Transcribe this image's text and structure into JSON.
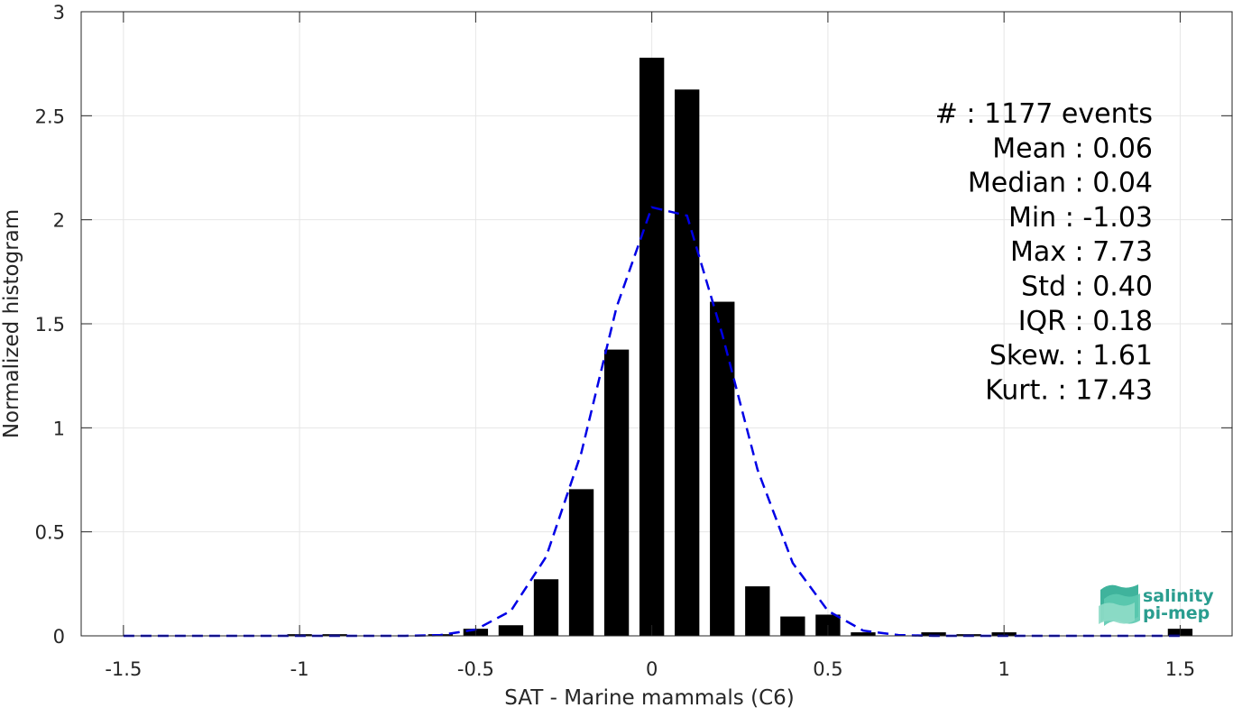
{
  "chart_data": {
    "type": "bar",
    "xlabel": "SAT - Marine mammals (C6)",
    "ylabel": "Normalized histogram",
    "xlim": [
      -1.62,
      1.65
    ],
    "ylim": [
      0,
      3
    ],
    "xticks": [
      -1.5,
      -1,
      -0.5,
      0,
      0.5,
      1,
      1.5
    ],
    "xtick_labels": [
      "-1.5",
      "-1",
      "-0.5",
      "0",
      "0.5",
      "1",
      "1.5"
    ],
    "yticks": [
      0,
      0.5,
      1,
      1.5,
      2,
      2.5,
      3
    ],
    "ytick_labels": [
      "0",
      "0.5",
      "1",
      "1.5",
      "2",
      "2.5",
      "3"
    ],
    "grid": true,
    "bar_width": 0.07,
    "bars": {
      "x": [
        -1.5,
        -1.4,
        -1.3,
        -1.2,
        -1.1,
        -1.0,
        -0.9,
        -0.8,
        -0.7,
        -0.6,
        -0.5,
        -0.4,
        -0.3,
        -0.2,
        -0.1,
        0.0,
        0.1,
        0.2,
        0.3,
        0.4,
        0.5,
        0.6,
        0.7,
        0.8,
        0.9,
        1.0,
        1.1,
        1.2,
        1.3,
        1.4,
        1.5
      ],
      "values": [
        0,
        0,
        0,
        0,
        0,
        0.008,
        0.008,
        0,
        0,
        0.008,
        0.034,
        0.051,
        0.272,
        0.705,
        1.376,
        2.779,
        2.626,
        1.606,
        0.238,
        0.093,
        0.102,
        0.017,
        0,
        0.017,
        0.008,
        0.017,
        0,
        0,
        0,
        0,
        0.034
      ],
      "color": "#000000"
    },
    "fit_line": {
      "x": [
        -1.5,
        -1.4,
        -1.3,
        -1.2,
        -1.1,
        -1.0,
        -0.9,
        -0.8,
        -0.7,
        -0.6,
        -0.5,
        -0.4,
        -0.3,
        -0.2,
        -0.1,
        0.0,
        0.1,
        0.2,
        0.3,
        0.4,
        0.5,
        0.6,
        0.7,
        0.8,
        0.9,
        1.0,
        1.1,
        1.2,
        1.3,
        1.4,
        1.5
      ],
      "values": [
        0,
        0,
        0,
        0,
        0,
        0,
        0,
        0,
        0,
        0.004,
        0.03,
        0.12,
        0.38,
        0.88,
        1.58,
        2.06,
        2.02,
        1.45,
        0.8,
        0.35,
        0.12,
        0.025,
        0.004,
        0,
        0,
        0,
        0,
        0,
        0,
        0,
        0
      ],
      "color": "#0000e6",
      "style": "dashed"
    },
    "annotations": [
      {
        "label": "#  ",
        "value": ": 1177 events"
      },
      {
        "label": "Mean ",
        "value": ": 0.06"
      },
      {
        "label": "Median ",
        "value": ": 0.04"
      },
      {
        "label": "Min ",
        "value": ": -1.03"
      },
      {
        "label": "Max ",
        "value": ": 7.73"
      },
      {
        "label": "Std ",
        "value": ": 0.40"
      },
      {
        "label": "IQR ",
        "value": ": 0.18"
      },
      {
        "label": "Skew. ",
        "value": ": 1.61"
      },
      {
        "label": "Kurt. ",
        "value": ": 17.43"
      }
    ]
  },
  "logo": {
    "line1": "salinity",
    "line2": "pi-mep",
    "color": "#2a9d8f"
  }
}
